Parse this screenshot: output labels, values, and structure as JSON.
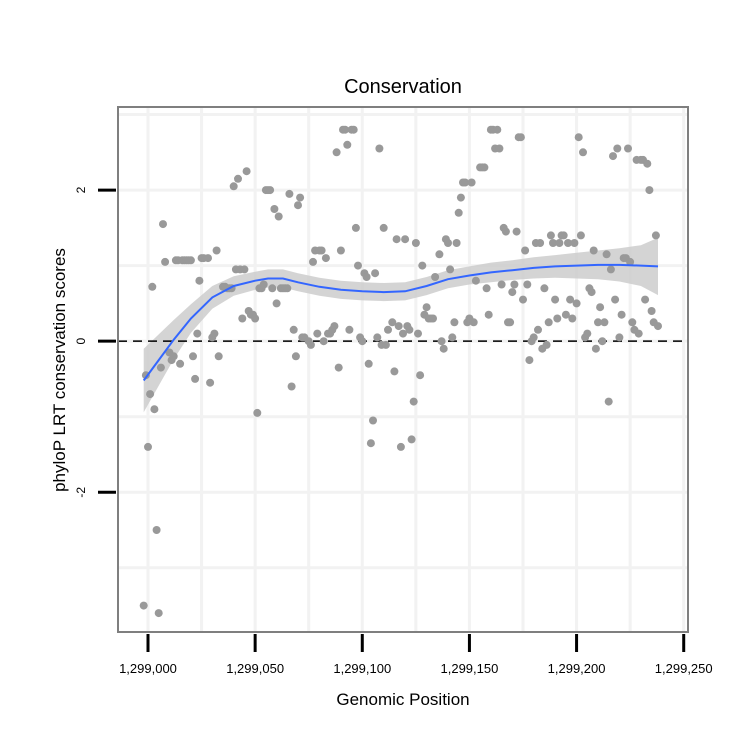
{
  "chart_data": {
    "type": "scatter",
    "title": "Conservation",
    "xlabel": "Genomic Position",
    "ylabel": "phyloP LRT conservation scores",
    "xlim": [
      1298986,
      1299252
    ],
    "ylim": [
      -3.85,
      3.1
    ],
    "x_ticks": [
      1299000,
      1299050,
      1299100,
      1299150,
      1299200,
      1299250
    ],
    "x_tick_labels": [
      "1,299,000",
      "1,299,050",
      "1,299,100",
      "1,299,150",
      "1,299,200",
      "1,299,250"
    ],
    "y_ticks": [
      -2,
      0,
      2
    ],
    "y_tick_labels": [
      "-2",
      "0",
      "2"
    ],
    "grid": true,
    "reference_line": {
      "y": 0,
      "style": "dashed"
    },
    "colors": {
      "points": "#999999",
      "smooth_line": "#3366FF",
      "ribbon": "#cccccc",
      "panel_border": "#7f7f7f",
      "grid": "#f2f2f2",
      "reference_line": "#000000"
    },
    "points": [
      [
        1298998,
        -3.5
      ],
      [
        1298999,
        -0.45
      ],
      [
        1299000,
        -1.4
      ],
      [
        1299001,
        -0.7
      ],
      [
        1299002,
        0.72
      ],
      [
        1299003,
        -0.9
      ],
      [
        1299004,
        -2.5
      ],
      [
        1299005,
        -3.6
      ],
      [
        1299006,
        -0.35
      ],
      [
        1299007,
        1.55
      ],
      [
        1299008,
        1.05
      ],
      [
        1299010,
        -0.15
      ],
      [
        1299011,
        -0.25
      ],
      [
        1299012,
        -0.2
      ],
      [
        1299013,
        1.07
      ],
      [
        1299014,
        1.07
      ],
      [
        1299015,
        -0.3
      ],
      [
        1299016,
        1.07
      ],
      [
        1299017,
        1.07
      ],
      [
        1299018,
        1.07
      ],
      [
        1299019,
        1.07
      ],
      [
        1299020,
        1.07
      ],
      [
        1299021,
        -0.2
      ],
      [
        1299022,
        -0.5
      ],
      [
        1299023,
        0.1
      ],
      [
        1299024,
        0.8
      ],
      [
        1299025,
        1.1
      ],
      [
        1299026,
        1.1
      ],
      [
        1299028,
        1.1
      ],
      [
        1299029,
        -0.55
      ],
      [
        1299030,
        0.05
      ],
      [
        1299031,
        0.1
      ],
      [
        1299032,
        1.2
      ],
      [
        1299033,
        -0.2
      ],
      [
        1299035,
        0.72
      ],
      [
        1299036,
        0.72
      ],
      [
        1299037,
        0.7
      ],
      [
        1299038,
        0.7
      ],
      [
        1299039,
        0.7
      ],
      [
        1299040,
        2.05
      ],
      [
        1299041,
        0.95
      ],
      [
        1299042,
        2.15
      ],
      [
        1299043,
        0.95
      ],
      [
        1299044,
        0.3
      ],
      [
        1299045,
        0.95
      ],
      [
        1299046,
        2.25
      ],
      [
        1299047,
        0.4
      ],
      [
        1299048,
        0.35
      ],
      [
        1299049,
        0.35
      ],
      [
        1299050,
        0.3
      ],
      [
        1299051,
        -0.95
      ],
      [
        1299052,
        0.7
      ],
      [
        1299053,
        0.7
      ],
      [
        1299054,
        0.75
      ],
      [
        1299055,
        2.0
      ],
      [
        1299056,
        2.0
      ],
      [
        1299057,
        2.0
      ],
      [
        1299058,
        0.7
      ],
      [
        1299059,
        1.75
      ],
      [
        1299060,
        0.5
      ],
      [
        1299061,
        1.65
      ],
      [
        1299062,
        0.7
      ],
      [
        1299063,
        0.7
      ],
      [
        1299064,
        0.7
      ],
      [
        1299065,
        0.7
      ],
      [
        1299066,
        1.95
      ],
      [
        1299067,
        -0.6
      ],
      [
        1299068,
        0.15
      ],
      [
        1299069,
        -0.2
      ],
      [
        1299070,
        1.8
      ],
      [
        1299071,
        1.9
      ],
      [
        1299072,
        0.05
      ],
      [
        1299073,
        0.05
      ],
      [
        1299075,
        0.0
      ],
      [
        1299076,
        -0.05
      ],
      [
        1299077,
        1.05
      ],
      [
        1299078,
        1.2
      ],
      [
        1299079,
        0.1
      ],
      [
        1299080,
        1.2
      ],
      [
        1299081,
        1.2
      ],
      [
        1299082,
        0.0
      ],
      [
        1299083,
        1.1
      ],
      [
        1299084,
        0.1
      ],
      [
        1299085,
        0.1
      ],
      [
        1299086,
        0.15
      ],
      [
        1299087,
        0.2
      ],
      [
        1299088,
        2.5
      ],
      [
        1299089,
        -0.35
      ],
      [
        1299090,
        1.2
      ],
      [
        1299091,
        2.8
      ],
      [
        1299092,
        2.8
      ],
      [
        1299093,
        2.6
      ],
      [
        1299094,
        0.15
      ],
      [
        1299095,
        2.8
      ],
      [
        1299096,
        2.8
      ],
      [
        1299097,
        1.5
      ],
      [
        1299098,
        1.0
      ],
      [
        1299099,
        0.05
      ],
      [
        1299100,
        0.0
      ],
      [
        1299101,
        0.9
      ],
      [
        1299102,
        0.85
      ],
      [
        1299103,
        -0.3
      ],
      [
        1299104,
        -1.35
      ],
      [
        1299105,
        -1.05
      ],
      [
        1299106,
        0.9
      ],
      [
        1299107,
        0.05
      ],
      [
        1299108,
        2.55
      ],
      [
        1299109,
        -0.05
      ],
      [
        1299110,
        1.5
      ],
      [
        1299111,
        -0.05
      ],
      [
        1299112,
        0.15
      ],
      [
        1299114,
        0.25
      ],
      [
        1299115,
        -0.4
      ],
      [
        1299116,
        1.35
      ],
      [
        1299117,
        0.2
      ],
      [
        1299118,
        -1.4
      ],
      [
        1299119,
        0.1
      ],
      [
        1299120,
        1.35
      ],
      [
        1299121,
        0.2
      ],
      [
        1299122,
        0.15
      ],
      [
        1299123,
        -1.3
      ],
      [
        1299124,
        -0.8
      ],
      [
        1299125,
        1.3
      ],
      [
        1299126,
        0.1
      ],
      [
        1299127,
        -0.45
      ],
      [
        1299128,
        1.0
      ],
      [
        1299129,
        0.35
      ],
      [
        1299130,
        0.45
      ],
      [
        1299131,
        0.3
      ],
      [
        1299132,
        0.3
      ],
      [
        1299133,
        0.3
      ],
      [
        1299134,
        0.85
      ],
      [
        1299136,
        1.15
      ],
      [
        1299137,
        0.0
      ],
      [
        1299138,
        -0.1
      ],
      [
        1299139,
        1.35
      ],
      [
        1299140,
        1.3
      ],
      [
        1299141,
        0.95
      ],
      [
        1299142,
        0.05
      ],
      [
        1299143,
        0.25
      ],
      [
        1299144,
        1.3
      ],
      [
        1299145,
        1.7
      ],
      [
        1299146,
        1.9
      ],
      [
        1299147,
        2.1
      ],
      [
        1299148,
        2.1
      ],
      [
        1299149,
        0.25
      ],
      [
        1299150,
        0.3
      ],
      [
        1299151,
        2.1
      ],
      [
        1299152,
        0.25
      ],
      [
        1299153,
        0.8
      ],
      [
        1299155,
        2.3
      ],
      [
        1299156,
        2.3
      ],
      [
        1299157,
        2.3
      ],
      [
        1299158,
        0.7
      ],
      [
        1299159,
        0.35
      ],
      [
        1299160,
        2.8
      ],
      [
        1299161,
        2.8
      ],
      [
        1299162,
        2.55
      ],
      [
        1299163,
        2.8
      ],
      [
        1299164,
        2.55
      ],
      [
        1299165,
        0.75
      ],
      [
        1299166,
        1.5
      ],
      [
        1299167,
        1.45
      ],
      [
        1299168,
        0.25
      ],
      [
        1299169,
        0.25
      ],
      [
        1299170,
        0.65
      ],
      [
        1299171,
        0.75
      ],
      [
        1299172,
        1.45
      ],
      [
        1299173,
        2.7
      ],
      [
        1299174,
        2.7
      ],
      [
        1299175,
        0.55
      ],
      [
        1299176,
        1.2
      ],
      [
        1299177,
        0.75
      ],
      [
        1299178,
        -0.25
      ],
      [
        1299179,
        0.0
      ],
      [
        1299180,
        0.05
      ],
      [
        1299181,
        1.3
      ],
      [
        1299182,
        0.15
      ],
      [
        1299183,
        1.3
      ],
      [
        1299184,
        -0.1
      ],
      [
        1299185,
        0.7
      ],
      [
        1299186,
        -0.05
      ],
      [
        1299187,
        0.25
      ],
      [
        1299188,
        1.4
      ],
      [
        1299189,
        1.3
      ],
      [
        1299190,
        0.55
      ],
      [
        1299191,
        0.3
      ],
      [
        1299192,
        1.3
      ],
      [
        1299193,
        1.4
      ],
      [
        1299194,
        1.4
      ],
      [
        1299195,
        0.35
      ],
      [
        1299196,
        1.3
      ],
      [
        1299197,
        0.55
      ],
      [
        1299198,
        0.3
      ],
      [
        1299199,
        1.3
      ],
      [
        1299200,
        0.5
      ],
      [
        1299201,
        2.7
      ],
      [
        1299202,
        1.4
      ],
      [
        1299203,
        2.5
      ],
      [
        1299204,
        0.05
      ],
      [
        1299205,
        0.1
      ],
      [
        1299206,
        0.7
      ],
      [
        1299207,
        0.65
      ],
      [
        1299208,
        1.2
      ],
      [
        1299209,
        -0.1
      ],
      [
        1299210,
        0.25
      ],
      [
        1299211,
        0.45
      ],
      [
        1299212,
        0.0
      ],
      [
        1299213,
        0.25
      ],
      [
        1299214,
        1.15
      ],
      [
        1299215,
        -0.8
      ],
      [
        1299216,
        0.95
      ],
      [
        1299217,
        2.45
      ],
      [
        1299218,
        0.55
      ],
      [
        1299219,
        2.55
      ],
      [
        1299220,
        0.05
      ],
      [
        1299221,
        0.35
      ],
      [
        1299222,
        1.1
      ],
      [
        1299223,
        1.1
      ],
      [
        1299224,
        2.55
      ],
      [
        1299225,
        1.05
      ],
      [
        1299226,
        0.25
      ],
      [
        1299227,
        0.15
      ],
      [
        1299228,
        2.4
      ],
      [
        1299229,
        0.1
      ],
      [
        1299230,
        2.4
      ],
      [
        1299231,
        2.4
      ],
      [
        1299232,
        0.55
      ],
      [
        1299233,
        2.35
      ],
      [
        1299234,
        2.0
      ],
      [
        1299235,
        0.4
      ],
      [
        1299236,
        0.25
      ],
      [
        1299237,
        1.4
      ],
      [
        1299238,
        0.2
      ]
    ],
    "smooth": [
      [
        1298998,
        -0.52
      ],
      [
        1299005,
        -0.25
      ],
      [
        1299012,
        0.02
      ],
      [
        1299020,
        0.3
      ],
      [
        1299030,
        0.58
      ],
      [
        1299040,
        0.73
      ],
      [
        1299050,
        0.8
      ],
      [
        1299056,
        0.83
      ],
      [
        1299063,
        0.83
      ],
      [
        1299070,
        0.78
      ],
      [
        1299080,
        0.72
      ],
      [
        1299090,
        0.68
      ],
      [
        1299100,
        0.66
      ],
      [
        1299110,
        0.65
      ],
      [
        1299120,
        0.66
      ],
      [
        1299130,
        0.73
      ],
      [
        1299140,
        0.82
      ],
      [
        1299150,
        0.87
      ],
      [
        1299160,
        0.91
      ],
      [
        1299170,
        0.94
      ],
      [
        1299180,
        0.97
      ],
      [
        1299190,
        0.99
      ],
      [
        1299200,
        1.0
      ],
      [
        1299210,
        1.01
      ],
      [
        1299220,
        1.01
      ],
      [
        1299230,
        1.0
      ],
      [
        1299238,
        0.99
      ]
    ],
    "ribbon_halfwidth": [
      0.42,
      0.34,
      0.26,
      0.19,
      0.15,
      0.13,
      0.12,
      0.12,
      0.12,
      0.12,
      0.12,
      0.12,
      0.12,
      0.12,
      0.12,
      0.12,
      0.12,
      0.12,
      0.13,
      0.13,
      0.14,
      0.15,
      0.17,
      0.19,
      0.22,
      0.27,
      0.38
    ]
  }
}
